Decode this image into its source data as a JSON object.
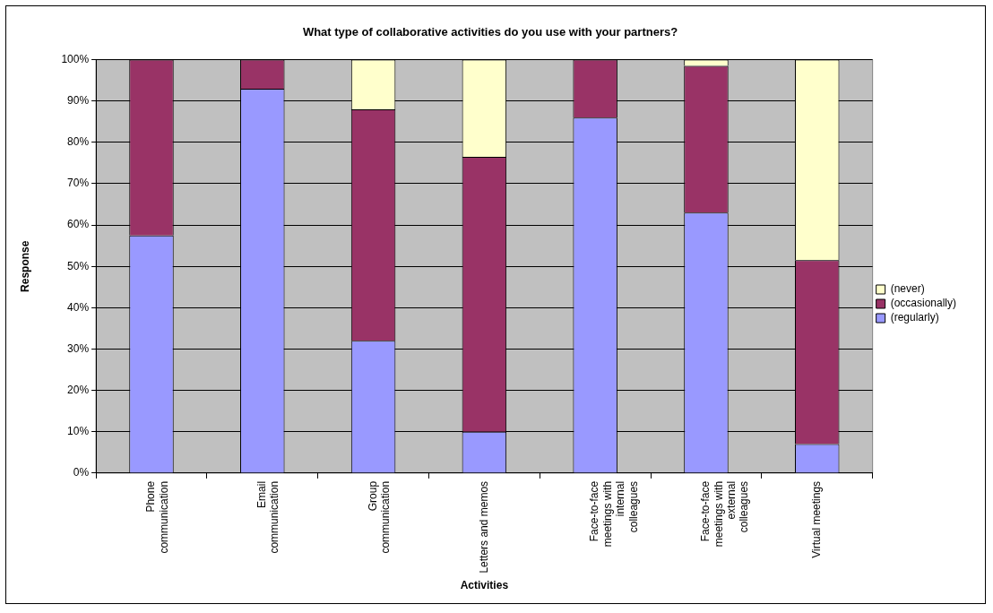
{
  "chart_data": {
    "type": "bar",
    "title": "What type of collaborative activities do you use with your partners?",
    "xlabel": "Activities",
    "ylabel": "Response",
    "categories": [
      "Phone communication",
      "Email communication",
      "Group communication",
      "Letters and memos",
      "Face-to-face meetings with internal colleagues",
      "Face-to-face meetings with external colleagues",
      "Virtual meetings"
    ],
    "stacked": true,
    "series": [
      {
        "name": "(regularly)",
        "color": "#9999ff",
        "values": [
          57.5,
          93,
          32,
          10,
          86,
          63,
          7
        ]
      },
      {
        "name": "(occasionally)",
        "color": "#993366",
        "values": [
          42.5,
          7,
          56,
          66.5,
          14,
          35.5,
          44.5
        ]
      },
      {
        "name": "(never)",
        "color": "#ffffcc",
        "values": [
          0,
          0,
          12,
          23.5,
          0,
          1.5,
          48.5
        ]
      }
    ],
    "ylim": [
      0,
      100
    ],
    "yticks": [
      {
        "value": 0,
        "label": "0%"
      },
      {
        "value": 10,
        "label": "10%"
      },
      {
        "value": 20,
        "label": "20%"
      },
      {
        "value": 30,
        "label": "30%"
      },
      {
        "value": 40,
        "label": "40%"
      },
      {
        "value": 50,
        "label": "50%"
      },
      {
        "value": 60,
        "label": "60%"
      },
      {
        "value": 70,
        "label": "70%"
      },
      {
        "value": 80,
        "label": "80%"
      },
      {
        "value": 90,
        "label": "90%"
      },
      {
        "value": 100,
        "label": "100%"
      }
    ],
    "grid": "y",
    "legend": "right"
  }
}
